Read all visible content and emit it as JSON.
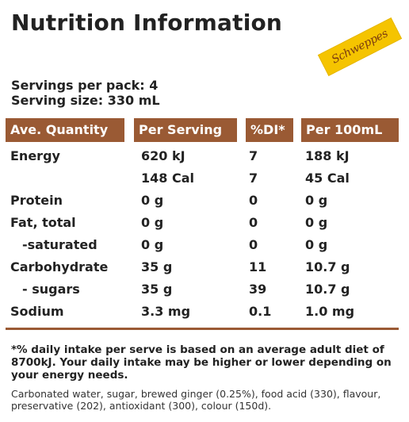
{
  "title": "Nutrition Information",
  "brand": {
    "name": "Schweppes",
    "color": "#f5c400"
  },
  "servings_per_pack": "Servings per pack: 4",
  "serving_size": "Serving size: 330 mL",
  "accent_color": "#9a5a34",
  "headers": [
    "Ave. Quantity",
    "Per Serving",
    "%DI*",
    "Per 100mL"
  ],
  "rows": [
    {
      "label": "Energy",
      "per_serving": "620 kJ",
      "di": "7",
      "per_100ml": "188 kJ"
    },
    {
      "label": "",
      "per_serving": "148 Cal",
      "di": "7",
      "per_100ml": "45 Cal"
    },
    {
      "label": "Protein",
      "per_serving": "0 g",
      "di": "0",
      "per_100ml": "0 g"
    },
    {
      "label": "Fat, total",
      "per_serving": "0 g",
      "di": "0",
      "per_100ml": "0 g"
    },
    {
      "label": "-saturated",
      "per_serving": "0 g",
      "di": "0",
      "per_100ml": "0 g"
    },
    {
      "label": "Carbohydrate",
      "per_serving": "35 g",
      "di": "11",
      "per_100ml": "10.7 g"
    },
    {
      "label": "- sugars",
      "per_serving": "35 g",
      "di": "39",
      "per_100ml": "10.7 g"
    },
    {
      "label": "Sodium",
      "per_serving": "3.3 mg",
      "di": "0.1",
      "per_100ml": "1.0 mg"
    }
  ],
  "footnote": "*% daily intake per serve is based on an average adult diet of 8700kJ. Your daily intake may be higher or lower depending on your energy needs.",
  "ingredients": "Carbonated water, sugar, brewed ginger (0.25%), food acid (330), flavour, preservative (202), antioxidant (300), colour (150d)."
}
